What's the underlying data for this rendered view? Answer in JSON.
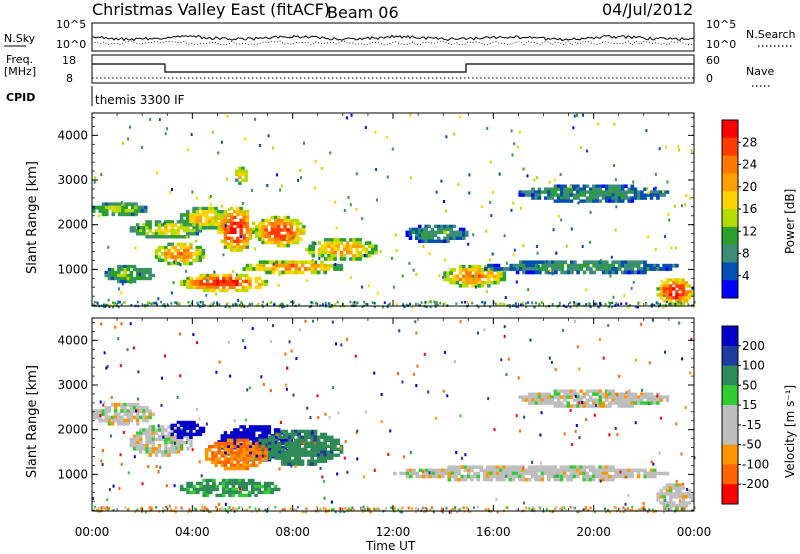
{
  "header": {
    "title": "Christmas Valley East (fitACF)",
    "beam": "Beam 06",
    "date": "04/Jul/2012"
  },
  "panels": {
    "nsky_label": "N.Sky",
    "nsearch_label": "N.Search",
    "freq_label_line1": "Freq.",
    "freq_label_line2": "[MHz]",
    "nave_label": "Nave",
    "cpid_label": "CPID",
    "cpid_text": "themis 3300 IF",
    "nsky_ticks": [
      "10^5",
      "10^0"
    ],
    "nsearch_ticks": [
      "10^5",
      "10^0"
    ],
    "freq_ticks": [
      "18",
      "8"
    ],
    "nave_ticks": [
      "60",
      "0"
    ]
  },
  "colorbars": {
    "power": {
      "label": "Power [dB]",
      "ticks": [
        "28",
        "24",
        "20",
        "16",
        "12",
        "8",
        "4"
      ],
      "colors": [
        "#ff0000",
        "#ff3c00",
        "#ff7800",
        "#ffa000",
        "#ffd200",
        "#b4dc00",
        "#2ca02c",
        "#3c8c78",
        "#0050b4",
        "#0000ff"
      ]
    },
    "velocity": {
      "label": "Velocity [m s⁻¹]",
      "ticks": [
        "200",
        "100",
        "50",
        "15",
        "-15",
        "-50",
        "-100",
        "-200"
      ],
      "colors": [
        "#0000c8",
        "#1e3ca0",
        "#2e8b57",
        "#32cd32",
        "#bebebe",
        "#bebebe",
        "#ff9600",
        "#ff6400",
        "#ff0000"
      ]
    }
  },
  "chart_data": [
    {
      "type": "heatmap",
      "title": "",
      "xlabel": "Time UT",
      "ylabel": "Slant Range [km]",
      "x_ticks": [
        "00:00",
        "04:00",
        "08:00",
        "12:00",
        "16:00",
        "20:00",
        "00:00"
      ],
      "x_range_hours": [
        0,
        24
      ],
      "y_range_km": [
        180,
        4500
      ],
      "y_ticks": [
        1000,
        2000,
        3000,
        4000
      ],
      "quantity": "Power [dB]",
      "value_range": [
        0,
        30
      ],
      "echo_regions": [
        {
          "t0": 0.0,
          "t1": 2.2,
          "r0": 2200,
          "r1": 2500,
          "value": 14
        },
        {
          "t0": 1.5,
          "t1": 4.5,
          "r0": 1700,
          "r1": 2100,
          "value": 16
        },
        {
          "t0": 2.5,
          "t1": 4.5,
          "r0": 1100,
          "r1": 1600,
          "value": 22
        },
        {
          "t0": 3.5,
          "t1": 5.5,
          "r0": 1900,
          "r1": 2400,
          "value": 18
        },
        {
          "t0": 5.0,
          "t1": 6.5,
          "r0": 1400,
          "r1": 2400,
          "value": 28
        },
        {
          "t0": 6.5,
          "t1": 8.5,
          "r0": 1500,
          "r1": 2200,
          "value": 26
        },
        {
          "t0": 8.5,
          "t1": 11.5,
          "r0": 1200,
          "r1": 1700,
          "value": 20
        },
        {
          "t0": 3.5,
          "t1": 7.0,
          "r0": 500,
          "r1": 900,
          "value": 27
        },
        {
          "t0": 6.0,
          "t1": 10.0,
          "r0": 900,
          "r1": 1200,
          "value": 22
        },
        {
          "t0": 0.5,
          "t1": 2.5,
          "r0": 700,
          "r1": 1100,
          "value": 12
        },
        {
          "t0": 12.5,
          "t1": 15.0,
          "r0": 1600,
          "r1": 2000,
          "value": 10
        },
        {
          "t0": 14.0,
          "t1": 16.5,
          "r0": 600,
          "r1": 1100,
          "value": 22
        },
        {
          "t0": 15.5,
          "t1": 23.5,
          "r0": 900,
          "r1": 1200,
          "value": 9
        },
        {
          "t0": 17.0,
          "t1": 23.0,
          "r0": 2500,
          "r1": 2900,
          "value": 9
        },
        {
          "t0": 22.5,
          "t1": 24.0,
          "r0": 200,
          "r1": 800,
          "value": 28
        },
        {
          "t0": 5.7,
          "t1": 6.2,
          "r0": 2900,
          "r1": 3300,
          "value": 18
        }
      ]
    },
    {
      "type": "heatmap",
      "title": "",
      "xlabel": "Time UT",
      "ylabel": "Slant Range [km]",
      "x_ticks": [
        "00:00",
        "04:00",
        "08:00",
        "12:00",
        "16:00",
        "20:00",
        "00:00"
      ],
      "x_range_hours": [
        0,
        24
      ],
      "y_range_km": [
        180,
        4500
      ],
      "y_ticks": [
        1000,
        2000,
        3000,
        4000
      ],
      "quantity": "Velocity [m s⁻¹]",
      "value_range": [
        -200,
        200
      ],
      "echo_regions": [
        {
          "t0": 0.0,
          "t1": 2.5,
          "r0": 2100,
          "r1": 2600,
          "value": 0
        },
        {
          "t0": 1.5,
          "t1": 4.0,
          "r0": 1400,
          "r1": 2100,
          "value": 0
        },
        {
          "t0": 3.0,
          "t1": 4.5,
          "r0": 1800,
          "r1": 2200,
          "value": 200
        },
        {
          "t0": 5.0,
          "t1": 8.0,
          "r0": 1300,
          "r1": 2100,
          "value": 200
        },
        {
          "t0": 6.5,
          "t1": 10.0,
          "r0": 1200,
          "r1": 2000,
          "value": 60
        },
        {
          "t0": 3.5,
          "t1": 7.5,
          "r0": 500,
          "r1": 900,
          "value": 40
        },
        {
          "t0": 4.5,
          "t1": 7.0,
          "r0": 1100,
          "r1": 1800,
          "value": -50
        },
        {
          "t0": 12.0,
          "t1": 23.0,
          "r0": 850,
          "r1": 1200,
          "value": 0
        },
        {
          "t0": 17.0,
          "t1": 23.0,
          "r0": 2500,
          "r1": 2900,
          "value": 0
        },
        {
          "t0": 22.5,
          "t1": 24.0,
          "r0": 200,
          "r1": 800,
          "value": 0
        }
      ]
    }
  ]
}
